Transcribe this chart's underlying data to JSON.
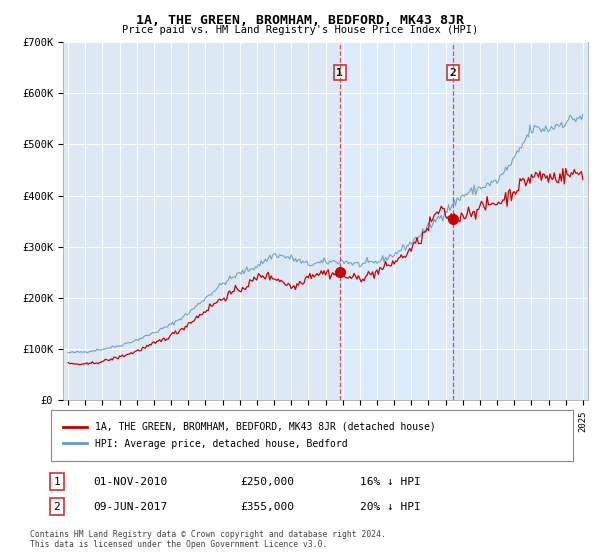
{
  "title": "1A, THE GREEN, BROMHAM, BEDFORD, MK43 8JR",
  "subtitle": "Price paid vs. HM Land Registry's House Price Index (HPI)",
  "ylim": [
    0,
    700000
  ],
  "xlim_start": 1994.7,
  "xlim_end": 2025.3,
  "background_color": "#dce9f5",
  "shade_color": "#ccddf0",
  "sale1_x": 2010.833,
  "sale1_y": 250000,
  "sale1_label": "01-NOV-2010",
  "sale1_price": "£250,000",
  "sale1_note": "16% ↓ HPI",
  "sale2_x": 2017.44,
  "sale2_y": 355000,
  "sale2_label": "09-JUN-2017",
  "sale2_price": "£355,000",
  "sale2_note": "20% ↓ HPI",
  "line_color_red": "#cc0000",
  "line_color_blue": "#6699cc",
  "legend_label_red": "1A, THE GREEN, BROMHAM, BEDFORD, MK43 8JR (detached house)",
  "legend_label_blue": "HPI: Average price, detached house, Bedford",
  "footer1": "Contains HM Land Registry data © Crown copyright and database right 2024.",
  "footer2": "This data is licensed under the Open Government Licence v3.0."
}
